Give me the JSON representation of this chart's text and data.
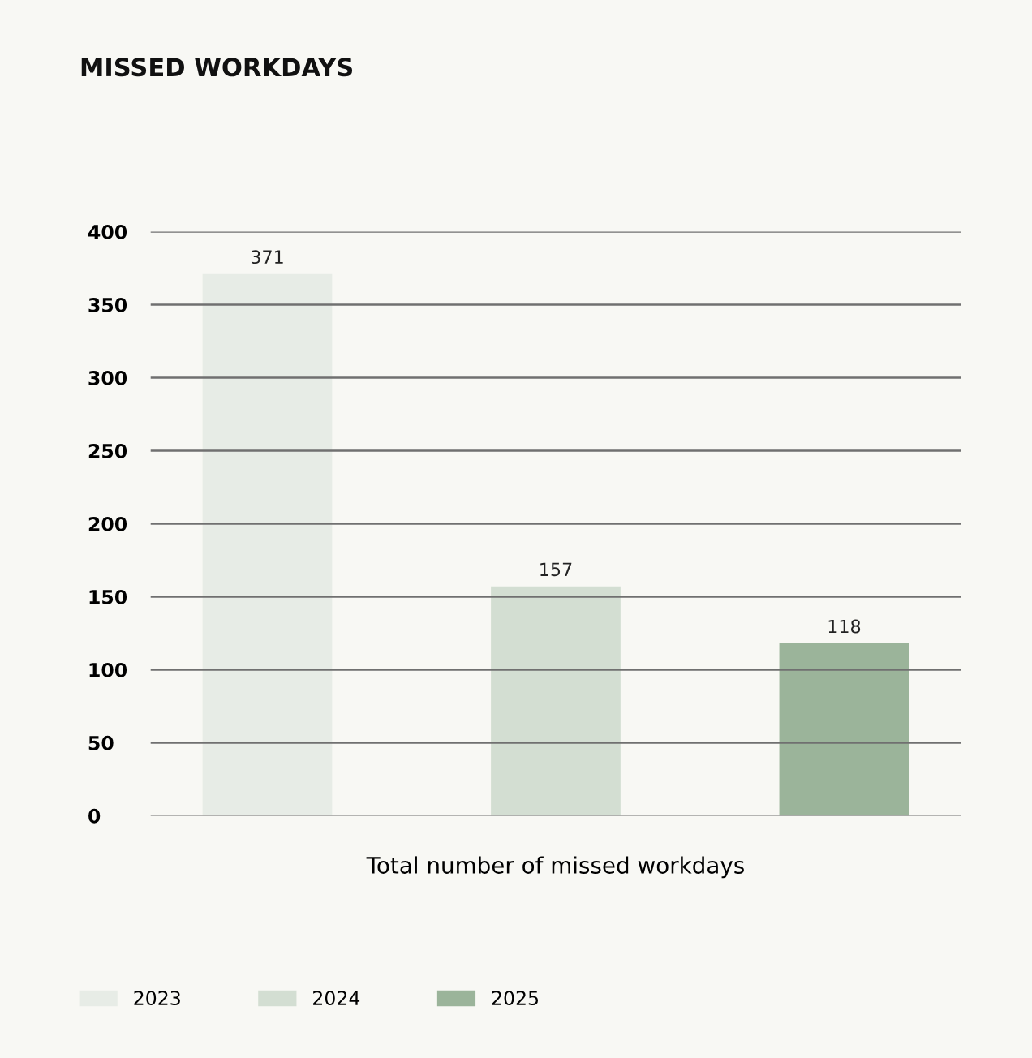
{
  "chart_data": {
    "type": "bar",
    "title": "MISSED WORKDAYS",
    "categories": [
      "Total number of missed workdays"
    ],
    "series": [
      {
        "name": "2023",
        "color": "#e7ece6",
        "values": [
          371
        ]
      },
      {
        "name": "2024",
        "color": "#d3ded2",
        "values": [
          157
        ]
      },
      {
        "name": "2025",
        "color": "#9bb49a",
        "values": [
          118
        ]
      }
    ],
    "ylim": [
      0,
      400
    ],
    "yticks": [
      0,
      50,
      100,
      150,
      200,
      250,
      300,
      350,
      400
    ],
    "grid": "y",
    "legend": "bottom left",
    "data_labels": true
  }
}
